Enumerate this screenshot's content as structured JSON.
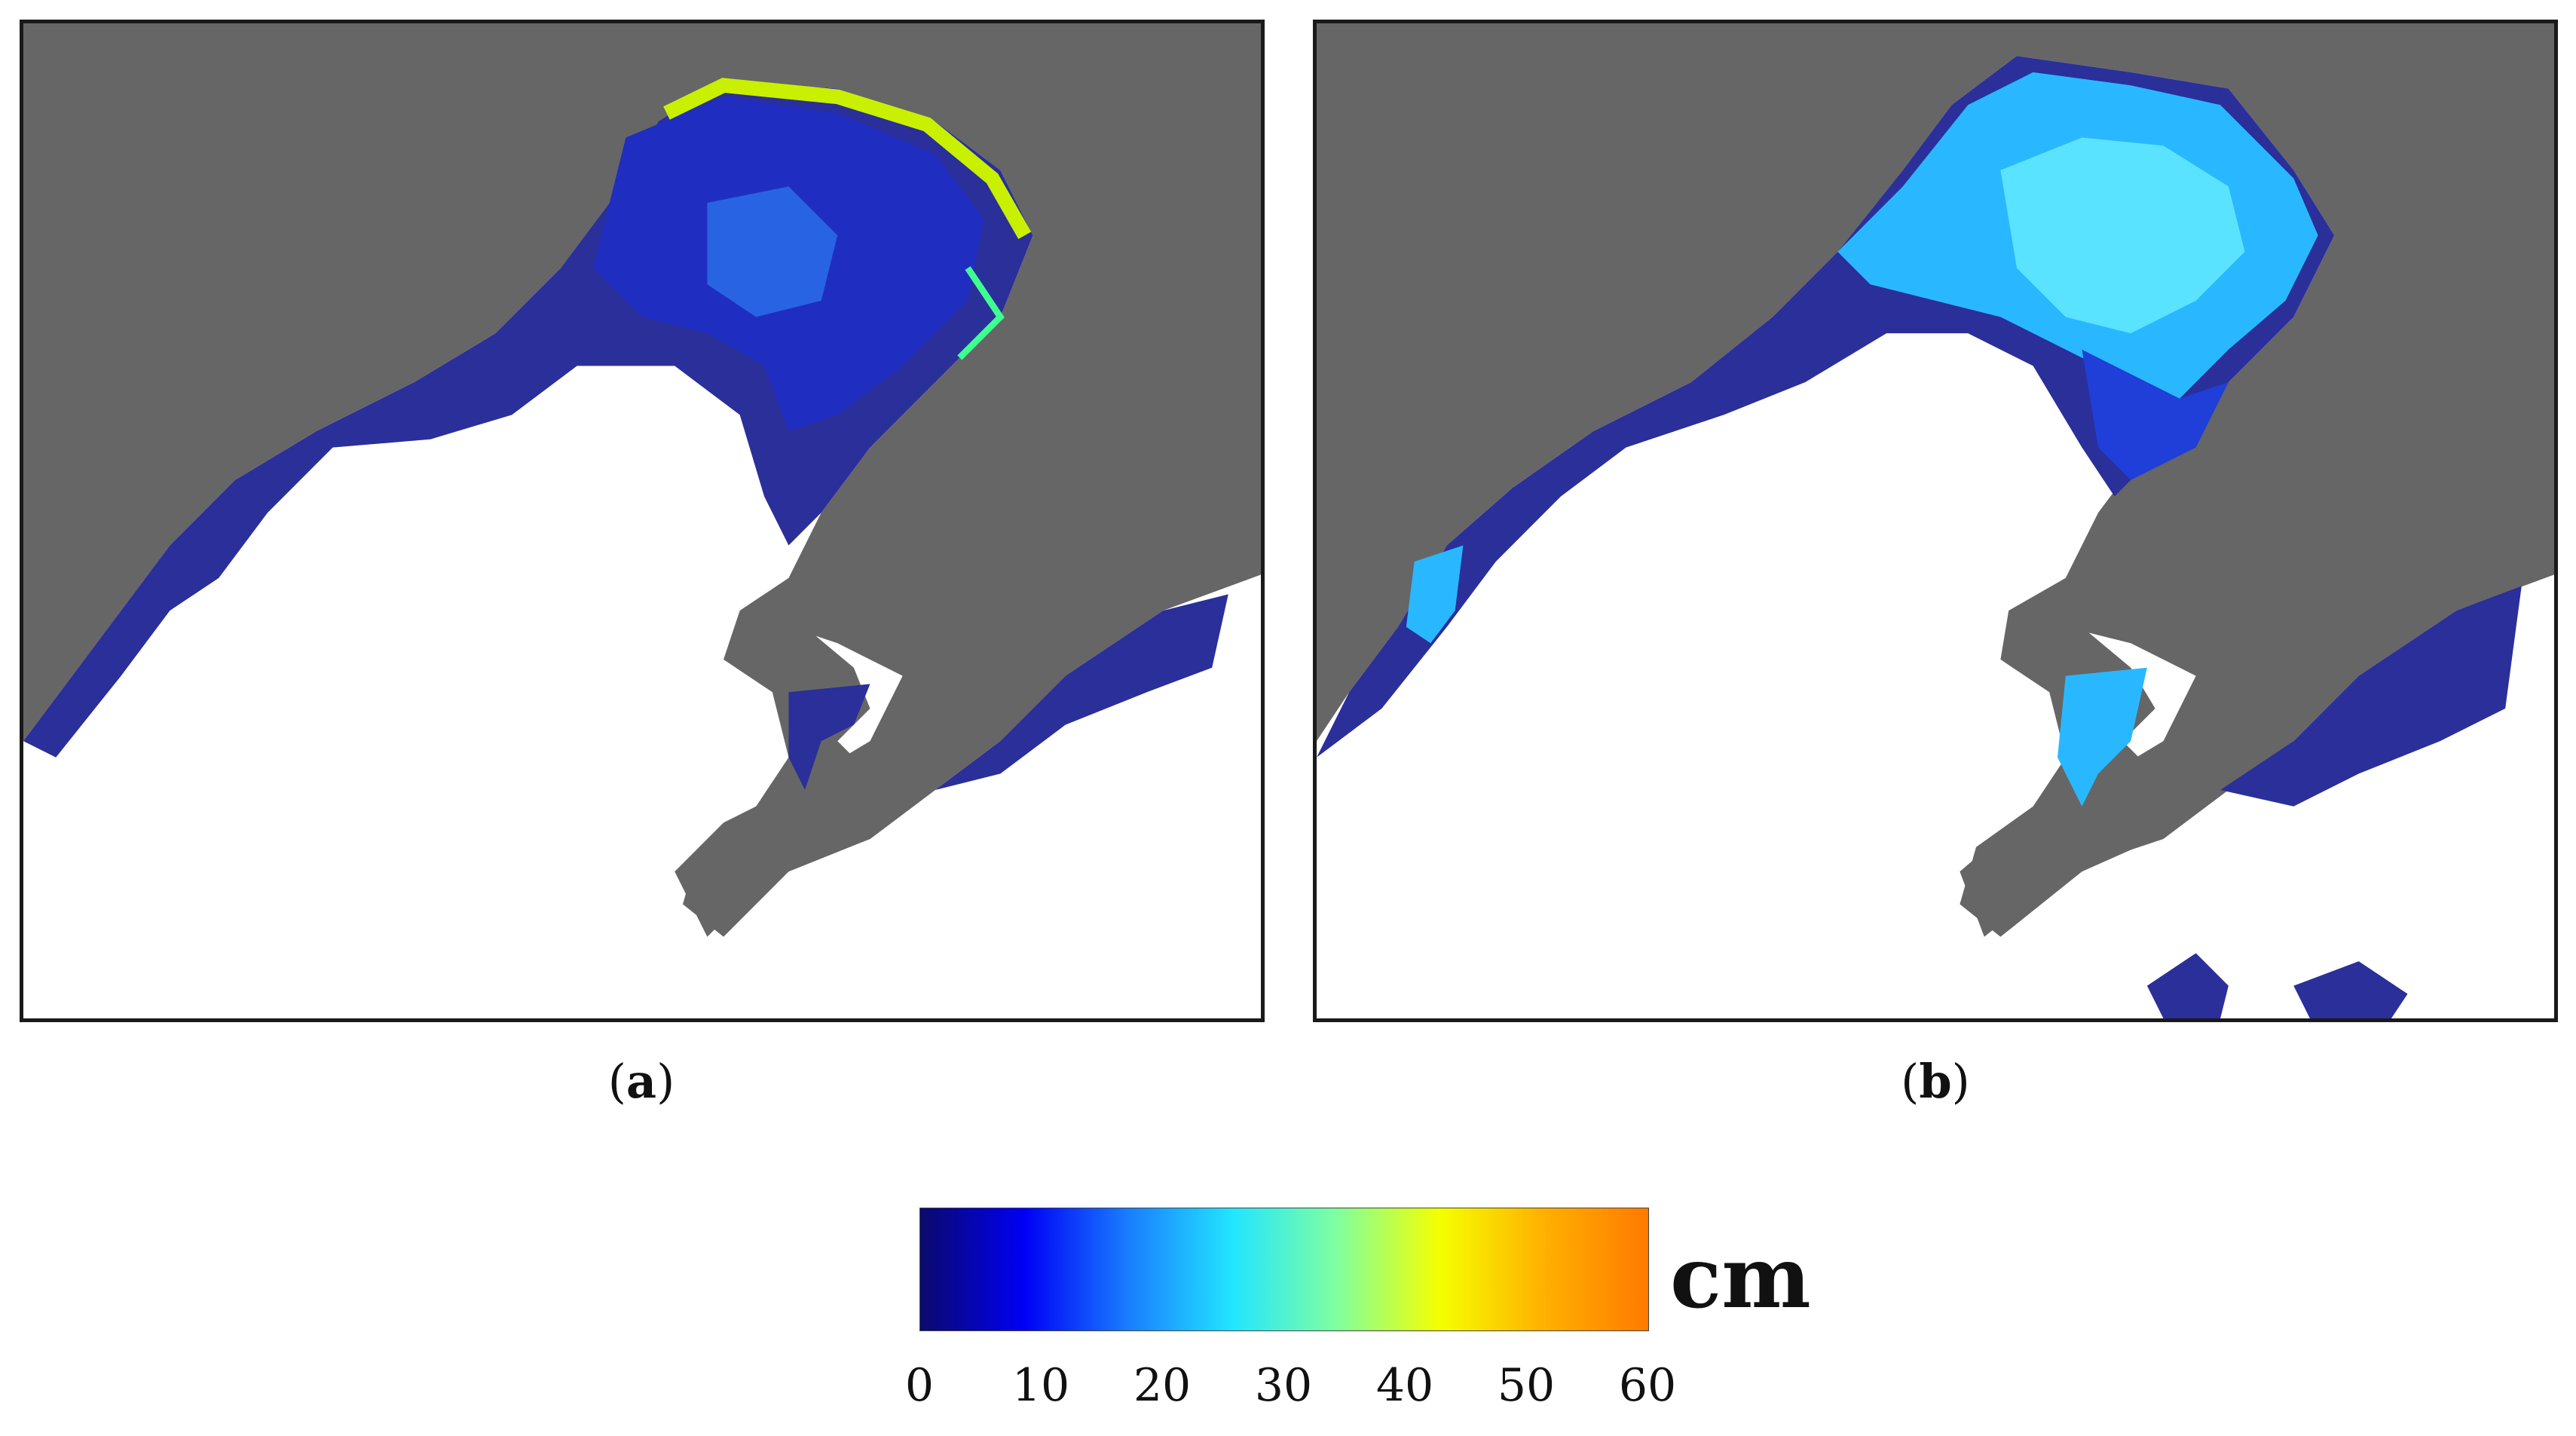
{
  "panels": [
    {
      "id": "a",
      "label": "(a)",
      "letter": "a"
    },
    {
      "id": "b",
      "label": "(b)",
      "letter": "b"
    }
  ],
  "colorbar": {
    "unit": "cm",
    "min": 0,
    "max": 60,
    "tick_labels": [
      "0",
      "10",
      "20",
      "30",
      "40",
      "50",
      "60"
    ],
    "colors": [
      "#0b0a6b",
      "#0000f5",
      "#1a7dff",
      "#22e5ff",
      "#7fffa0",
      "#f5ff00",
      "#ffb000",
      "#ff7a00"
    ]
  },
  "map_colors": {
    "land": "#666666",
    "sea_no_ice": "#ffffff",
    "border": "#1a1a1a"
  }
}
